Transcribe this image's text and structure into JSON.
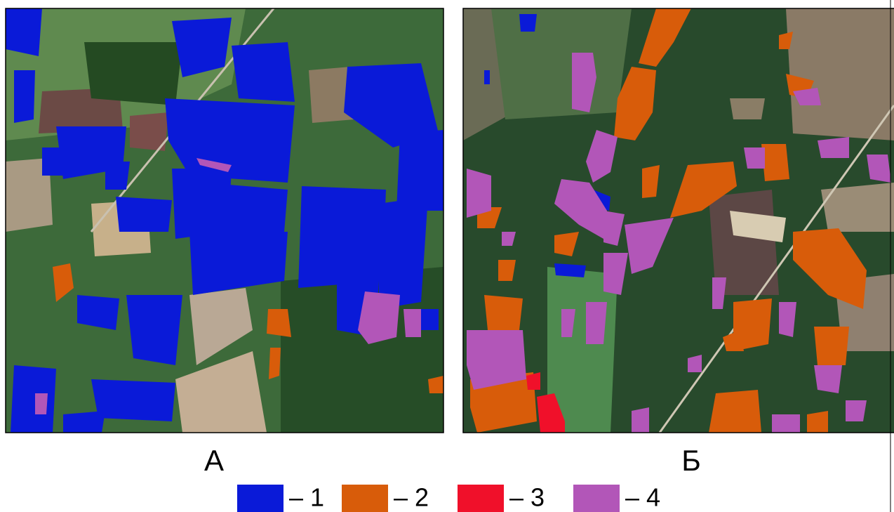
{
  "panels": [
    {
      "label": "А"
    },
    {
      "label": "Б"
    }
  ],
  "legend": {
    "items": [
      {
        "label": "– 1",
        "color": "#0a1ad8"
      },
      {
        "label": "– 2",
        "color": "#d85c0a"
      },
      {
        "label": "– 3",
        "color": "#f0102a"
      },
      {
        "label": "– 4",
        "color": "#b256b8"
      }
    ]
  }
}
